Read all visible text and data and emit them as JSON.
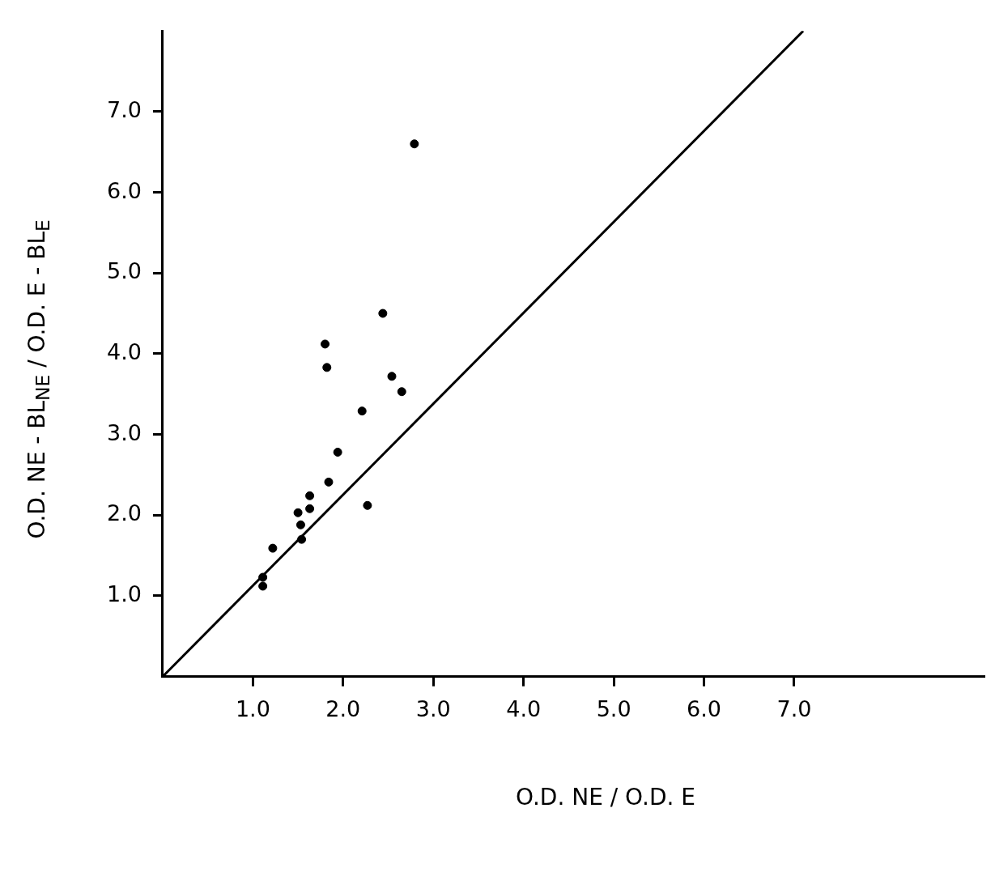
{
  "chart_data": {
    "type": "scatter",
    "xlabel": "O.D. NE / O.D. E",
    "ylabel": "O.D. NE - BL$_{NE}$ / O.D. E - BL$_{E}$",
    "xlim": [
      0,
      9.1
    ],
    "ylim": [
      0,
      8
    ],
    "xticks": [
      {
        "value": 1,
        "label": "1.0"
      },
      {
        "value": 2,
        "label": "2.0"
      },
      {
        "value": 3,
        "label": "3.0"
      },
      {
        "value": 4,
        "label": "4.0"
      },
      {
        "value": 5,
        "label": "5.0"
      },
      {
        "value": 6,
        "label": "6.0"
      },
      {
        "value": 7,
        "label": "7.0"
      }
    ],
    "yticks": [
      {
        "value": 1,
        "label": "1.0"
      },
      {
        "value": 2,
        "label": "2.0"
      },
      {
        "value": 3,
        "label": "3.0"
      },
      {
        "value": 4,
        "label": "4.0"
      },
      {
        "value": 5,
        "label": "5.0"
      },
      {
        "value": 6,
        "label": "6.0"
      },
      {
        "value": 7,
        "label": "7.0"
      }
    ],
    "grid": false,
    "legend": false,
    "marker": "circle",
    "series": [
      {
        "type": "scatter",
        "color": "#000000",
        "x": [
          1.11,
          1.11,
          1.22,
          1.5,
          1.53,
          1.54,
          1.63,
          1.63,
          1.84,
          1.8,
          1.82,
          1.94,
          2.21,
          2.27,
          2.44,
          2.54,
          2.65,
          2.79
        ],
        "values": [
          1.12,
          1.23,
          1.59,
          2.03,
          1.88,
          1.7,
          2.08,
          2.24,
          2.41,
          4.12,
          3.83,
          2.78,
          3.29,
          2.12,
          4.5,
          3.72,
          3.53,
          6.6
        ]
      },
      {
        "type": "line",
        "color": "#000000",
        "line_style": "solid",
        "marker": "none",
        "x": [
          0,
          7.1
        ],
        "values": [
          0,
          8.0
        ]
      }
    ]
  }
}
